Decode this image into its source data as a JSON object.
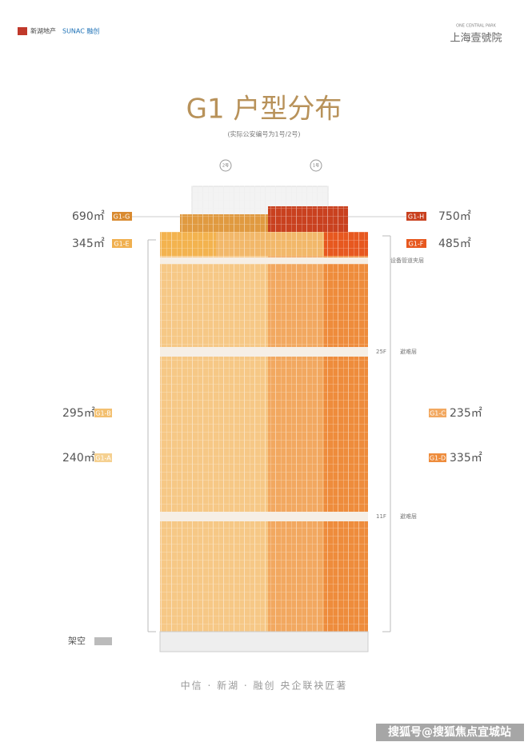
{
  "header": {
    "logo_left": "新湖地产",
    "logo_right": "SUNAC 融创",
    "brand_en": "ONE CENTRAL PARK",
    "brand_cn": "上海壹號院"
  },
  "title": "G1 户型分布",
  "subtitle": "(实际公安编号为1号/2号)",
  "towers": [
    "2号",
    "1号"
  ],
  "units": [
    {
      "code": "G1-G",
      "area": "690㎡"
    },
    {
      "code": "G1-E",
      "area": "345㎡"
    },
    {
      "code": "G1-B",
      "area": "295㎡"
    },
    {
      "code": "G1-A",
      "area": "240㎡"
    },
    {
      "code": "G1-H",
      "area": "750㎡"
    },
    {
      "code": "G1-F",
      "area": "485㎡"
    },
    {
      "code": "G1-C",
      "area": "235㎡"
    },
    {
      "code": "G1-D",
      "area": "335㎡"
    }
  ],
  "floors": {
    "mech": "设备管道夹层",
    "f25": "25F",
    "refuge1": "避难层",
    "f11": "11F",
    "refuge2": "避难层",
    "stilts": "架空"
  },
  "footer": "中信 · 新湖 · 融创    央企联袂匠著",
  "watermark": "搜狐号@搜狐焦点宜城站"
}
